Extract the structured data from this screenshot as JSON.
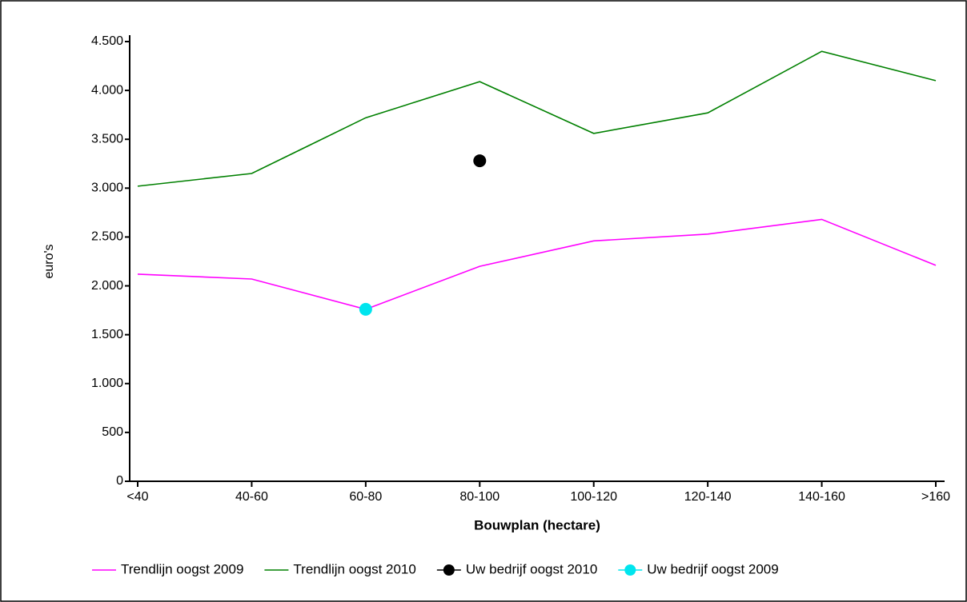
{
  "chart_data": {
    "type": "line",
    "x_label": "Bouwplan (hectare)",
    "y_label": "euro's",
    "categories": [
      "<40",
      "40-60",
      "60-80",
      "80-100",
      "100-120",
      "120-140",
      "140-160",
      ">160"
    ],
    "ylim": [
      0,
      4500
    ],
    "yticks": [
      0,
      500,
      {
        "value": 1000,
        "label": "1.000"
      },
      {
        "value": 1500,
        "label": "1.500"
      },
      {
        "value": 2000,
        "label": "2.000"
      },
      {
        "value": 2500,
        "label": "2.500"
      },
      {
        "value": 3000,
        "label": "3.000"
      },
      {
        "value": 3500,
        "label": "3.500"
      },
      {
        "value": 4000,
        "label": "4.000"
      },
      {
        "value": 4500,
        "label": "4.500"
      }
    ],
    "series": [
      {
        "name": "Trendlijn oogst 2009",
        "color": "#ff00ff",
        "style": "line",
        "values": [
          2120,
          2070,
          1760,
          2200,
          2460,
          2530,
          2680,
          2210
        ]
      },
      {
        "name": "Trendlijn oogst 2010",
        "color": "#008000",
        "style": "line",
        "values": [
          3020,
          3150,
          3720,
          4090,
          3560,
          3770,
          4400,
          4100
        ]
      },
      {
        "name": "Uw bedrijf oogst 2010",
        "color": "#000000",
        "style": "marker",
        "values": [
          null,
          null,
          null,
          3280,
          null,
          null,
          null,
          null
        ]
      },
      {
        "name": "Uw bedrijf oogst 2009",
        "color": "#00e5ee",
        "style": "marker",
        "values": [
          null,
          null,
          1760,
          null,
          null,
          null,
          null,
          null
        ]
      }
    ]
  }
}
